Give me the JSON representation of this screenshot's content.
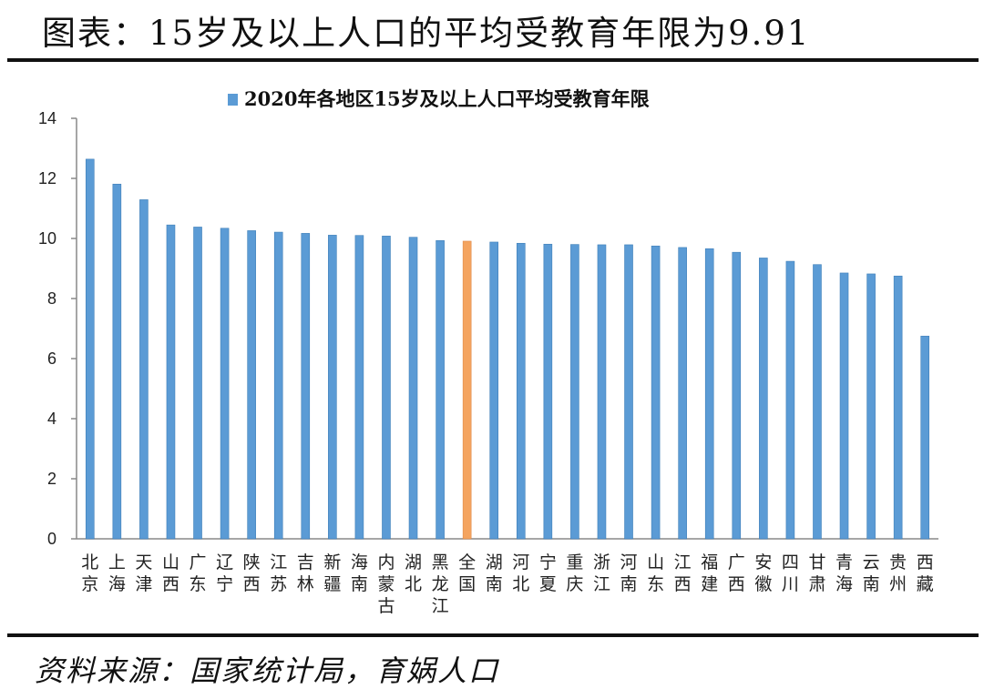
{
  "header": {
    "title": "图表：15岁及以上人口的平均受教育年限为9.91"
  },
  "footer": {
    "source": "资料来源：国家统计局，育娲人口"
  },
  "colors": {
    "bar": "#5b9bd5",
    "highlight": "#f4a460",
    "axis": "#888888"
  },
  "chart_data": {
    "type": "bar",
    "title": "",
    "legend": [
      "2020年各地区15岁及以上人口平均受教育年限"
    ],
    "legend_position": "top-center",
    "xlabel": "",
    "ylabel": "",
    "ylim": [
      0,
      14
    ],
    "yticks": [
      "0",
      "2",
      "4",
      "6",
      "8",
      "10",
      "12",
      "14"
    ],
    "grid": false,
    "categories": [
      [
        "北",
        "京"
      ],
      [
        "上",
        "海"
      ],
      [
        "天",
        "津"
      ],
      [
        "山",
        "西"
      ],
      [
        "广",
        "东"
      ],
      [
        "辽",
        "宁"
      ],
      [
        "陕",
        "西"
      ],
      [
        "江",
        "苏"
      ],
      [
        "吉",
        "林"
      ],
      [
        "新",
        "疆"
      ],
      [
        "海",
        "南"
      ],
      [
        "内",
        "蒙",
        "古"
      ],
      [
        "湖",
        "北"
      ],
      [
        "黑",
        "龙",
        "江"
      ],
      [
        "全",
        "国"
      ],
      [
        "湖",
        "南"
      ],
      [
        "河",
        "北"
      ],
      [
        "宁",
        "夏"
      ],
      [
        "重",
        "庆"
      ],
      [
        "浙",
        "江"
      ],
      [
        "河",
        "南"
      ],
      [
        "山",
        "东"
      ],
      [
        "江",
        "西"
      ],
      [
        "福",
        "建"
      ],
      [
        "广",
        "西"
      ],
      [
        "安",
        "徽"
      ],
      [
        "四",
        "川"
      ],
      [
        "甘",
        "肃"
      ],
      [
        "青",
        "海"
      ],
      [
        "云",
        "南"
      ],
      [
        "贵",
        "州"
      ],
      [
        "西",
        "藏"
      ]
    ],
    "values": [
      12.64,
      11.81,
      11.29,
      10.45,
      10.38,
      10.34,
      10.26,
      10.21,
      10.17,
      10.11,
      10.1,
      10.08,
      10.04,
      9.93,
      9.91,
      9.88,
      9.84,
      9.81,
      9.8,
      9.79,
      9.79,
      9.75,
      9.7,
      9.66,
      9.54,
      9.35,
      9.24,
      9.13,
      8.85,
      8.82,
      8.75,
      6.75
    ],
    "highlight_index": 14
  }
}
